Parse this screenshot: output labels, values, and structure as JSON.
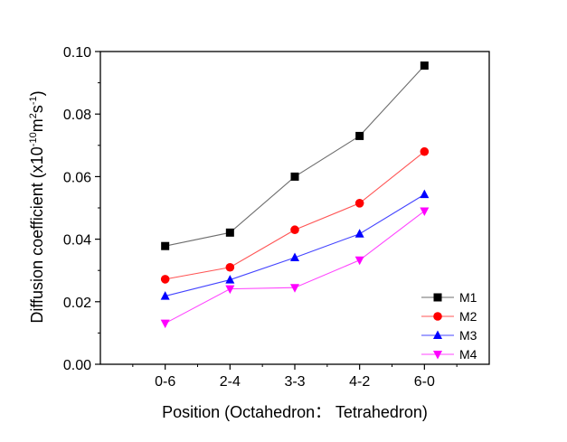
{
  "chart_data": {
    "type": "line",
    "xlabel": "Position (Octahedron： Tetrahedron)",
    "ylabel_main": "Diffusion coefficient (x10",
    "ylabel_exp1": "-10",
    "ylabel_mid1": "m",
    "ylabel_exp2": "2",
    "ylabel_mid2": "s",
    "ylabel_exp3": "-1",
    "ylabel_end": ")",
    "categories": [
      "0-6",
      "2-4",
      "3-3",
      "4-2",
      "6-0"
    ],
    "ylim": [
      0,
      0.1
    ],
    "yticks": [
      "0.00",
      "0.02",
      "0.04",
      "0.06",
      "0.08",
      "0.10"
    ],
    "ytick_values": [
      0,
      0.02,
      0.04,
      0.06,
      0.08,
      0.1
    ],
    "grid": false,
    "legend_position": "bottom-right",
    "series": [
      {
        "name": "M1",
        "color": "#000000",
        "line_color": "#6d6d6d",
        "marker": "square",
        "values": [
          0.0378,
          0.0421,
          0.06,
          0.073,
          0.0955
        ]
      },
      {
        "name": "M2",
        "color": "#ff0000",
        "line_color": "#ff5555",
        "marker": "circle",
        "values": [
          0.0272,
          0.031,
          0.043,
          0.0515,
          0.068
        ]
      },
      {
        "name": "M3",
        "color": "#0000ff",
        "line_color": "#4444ff",
        "marker": "triangle-up",
        "values": [
          0.0218,
          0.027,
          0.0341,
          0.0417,
          0.0543
        ]
      },
      {
        "name": "M4",
        "color": "#ff00ff",
        "line_color": "#ff44ff",
        "marker": "triangle-down",
        "values": [
          0.0131,
          0.0241,
          0.0245,
          0.0333,
          0.049
        ]
      }
    ]
  }
}
